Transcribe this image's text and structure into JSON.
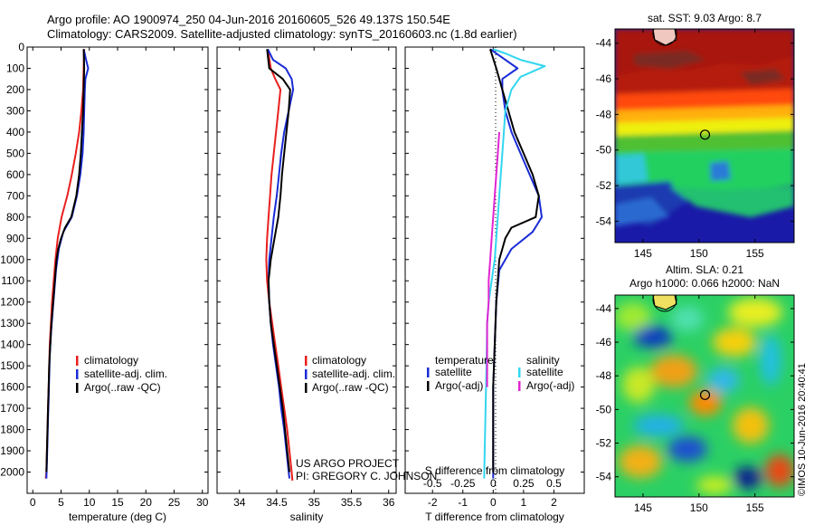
{
  "header": {
    "line1": "Argo profile: AO 1900974_250 04-Jun-2016 20160605_526 49.137S 150.54E",
    "line2": "Climatology: CARS2009. Satellite-adjusted climatology: synTS_20160603.nc (1.8d earlier)"
  },
  "project": {
    "line1": "US ARGO PROJECT",
    "line2": "PI: GREGORY C. JOHNSON"
  },
  "credit": "©IMOS 10-Jun-2016 20:40:41",
  "colors": {
    "climatology": "#e8201e",
    "satellite": "#1a2cd6",
    "argo": "#000000",
    "salinity_satellite": "#33d6f0",
    "salinity_argo": "#e026d2"
  },
  "chart_data": [
    {
      "type": "line",
      "id": "temperature",
      "xlabel": "temperature (deg C)",
      "ylim": [
        2100,
        0
      ],
      "xlim": [
        -1,
        31
      ],
      "xticks": [
        0,
        5,
        10,
        15,
        20,
        25,
        30
      ],
      "yticks": [
        0,
        100,
        200,
        300,
        400,
        500,
        600,
        700,
        800,
        900,
        1000,
        1100,
        1200,
        1300,
        1400,
        1500,
        1600,
        1700,
        1800,
        1900,
        2000
      ],
      "legend": [
        "climatology",
        "satellite-adj. clim.",
        "Argo(..raw -QC)"
      ],
      "series": [
        {
          "name": "climatology",
          "color": "#e8201e",
          "points": [
            [
              9.1,
              10
            ],
            [
              9.0,
              100
            ],
            [
              8.9,
              200
            ],
            [
              8.6,
              300
            ],
            [
              8.2,
              400
            ],
            [
              7.6,
              500
            ],
            [
              6.9,
              600
            ],
            [
              6.1,
              700
            ],
            [
              5.1,
              800
            ],
            [
              4.4,
              900
            ],
            [
              4.0,
              1000
            ],
            [
              3.7,
              1100
            ],
            [
              3.4,
              1200
            ],
            [
              3.2,
              1300
            ],
            [
              3.0,
              1400
            ],
            [
              2.9,
              1500
            ],
            [
              2.8,
              1600
            ],
            [
              2.7,
              1700
            ],
            [
              2.6,
              1800
            ],
            [
              2.5,
              1900
            ],
            [
              2.4,
              2000
            ],
            [
              2.3,
              2030
            ]
          ]
        },
        {
          "name": "satellite-adj. clim.",
          "color": "#1a2cd6",
          "points": [
            [
              9.0,
              10
            ],
            [
              9.6,
              80
            ],
            [
              9.8,
              100
            ],
            [
              9.3,
              150
            ],
            [
              9.2,
              200
            ],
            [
              9.1,
              300
            ],
            [
              9.0,
              400
            ],
            [
              8.8,
              500
            ],
            [
              8.4,
              600
            ],
            [
              7.8,
              700
            ],
            [
              6.9,
              800
            ],
            [
              5.4,
              870
            ],
            [
              4.6,
              950
            ],
            [
              4.1,
              1050
            ],
            [
              3.8,
              1150
            ],
            [
              3.5,
              1250
            ],
            [
              3.2,
              1350
            ],
            [
              3.0,
              1450
            ],
            [
              2.9,
              1550
            ],
            [
              2.8,
              1650
            ],
            [
              2.7,
              1750
            ],
            [
              2.6,
              1850
            ],
            [
              2.5,
              1950
            ],
            [
              2.4,
              2030
            ]
          ]
        },
        {
          "name": "Argo(..raw -QC)",
          "color": "#000000",
          "points": [
            [
              9.0,
              10
            ],
            [
              9.1,
              100
            ],
            [
              9.0,
              200
            ],
            [
              8.9,
              300
            ],
            [
              8.7,
              400
            ],
            [
              8.5,
              500
            ],
            [
              8.2,
              600
            ],
            [
              7.7,
              700
            ],
            [
              6.8,
              800
            ],
            [
              5.7,
              850
            ],
            [
              5.0,
              900
            ],
            [
              4.5,
              950
            ],
            [
              4.2,
              1000
            ],
            [
              3.9,
              1100
            ],
            [
              3.6,
              1200
            ],
            [
              3.3,
              1300
            ],
            [
              3.1,
              1400
            ],
            [
              2.9,
              1500
            ],
            [
              2.8,
              1600
            ],
            [
              2.7,
              1700
            ],
            [
              2.6,
              1800
            ],
            [
              2.5,
              1900
            ],
            [
              2.4,
              2000
            ]
          ]
        }
      ]
    },
    {
      "type": "line",
      "id": "salinity",
      "xlabel": "salinity",
      "ylim": [
        2100,
        0
      ],
      "xlim": [
        33.7,
        36.1
      ],
      "xticks": [
        34,
        34.5,
        35,
        35.5,
        36
      ],
      "legend": [
        "climatology",
        "satellite-adj. clim.",
        "Argo(..raw -QC)"
      ],
      "series": [
        {
          "name": "climatology",
          "color": "#e8201e",
          "points": [
            [
              34.38,
              10
            ],
            [
              34.42,
              100
            ],
            [
              34.48,
              150
            ],
            [
              34.55,
              200
            ],
            [
              34.52,
              300
            ],
            [
              34.49,
              400
            ],
            [
              34.46,
              500
            ],
            [
              34.43,
              600
            ],
            [
              34.41,
              700
            ],
            [
              34.39,
              800
            ],
            [
              34.37,
              900
            ],
            [
              34.36,
              1000
            ],
            [
              34.37,
              1100
            ],
            [
              34.4,
              1200
            ],
            [
              34.44,
              1300
            ],
            [
              34.48,
              1400
            ],
            [
              34.52,
              1500
            ],
            [
              34.56,
              1600
            ],
            [
              34.6,
              1700
            ],
            [
              34.64,
              1800
            ],
            [
              34.67,
              1900
            ],
            [
              34.7,
              2000
            ],
            [
              34.71,
              2040
            ]
          ]
        },
        {
          "name": "satellite-adj. clim.",
          "color": "#1a2cd6",
          "points": [
            [
              34.38,
              10
            ],
            [
              34.45,
              60
            ],
            [
              34.62,
              100
            ],
            [
              34.7,
              150
            ],
            [
              34.72,
              200
            ],
            [
              34.66,
              300
            ],
            [
              34.6,
              400
            ],
            [
              34.56,
              500
            ],
            [
              34.53,
              600
            ],
            [
              34.5,
              700
            ],
            [
              34.46,
              800
            ],
            [
              34.43,
              900
            ],
            [
              34.4,
              1000
            ],
            [
              34.39,
              1100
            ],
            [
              34.4,
              1200
            ],
            [
              34.42,
              1300
            ],
            [
              34.45,
              1400
            ],
            [
              34.49,
              1500
            ],
            [
              34.53,
              1600
            ],
            [
              34.56,
              1700
            ],
            [
              34.6,
              1800
            ],
            [
              34.63,
              1900
            ],
            [
              34.66,
              2000
            ],
            [
              34.67,
              2030
            ]
          ]
        },
        {
          "name": "Argo(..raw -QC)",
          "color": "#000000",
          "points": [
            [
              34.37,
              10
            ],
            [
              34.4,
              100
            ],
            [
              34.58,
              150
            ],
            [
              34.68,
              200
            ],
            [
              34.66,
              300
            ],
            [
              34.63,
              400
            ],
            [
              34.6,
              500
            ],
            [
              34.57,
              600
            ],
            [
              34.55,
              700
            ],
            [
              34.52,
              800
            ],
            [
              34.47,
              900
            ],
            [
              34.42,
              1000
            ],
            [
              34.39,
              1100
            ],
            [
              34.4,
              1200
            ],
            [
              34.42,
              1300
            ],
            [
              34.46,
              1400
            ],
            [
              34.5,
              1500
            ],
            [
              34.54,
              1600
            ],
            [
              34.58,
              1700
            ],
            [
              34.61,
              1800
            ],
            [
              34.64,
              1900
            ],
            [
              34.67,
              2000
            ]
          ]
        }
      ]
    },
    {
      "type": "line",
      "id": "difference",
      "xlabel": "T difference from climatology",
      "xlabel2": "S difference from climatology",
      "ylim": [
        2100,
        0
      ],
      "xlim": [
        -2.9,
        3.0
      ],
      "xticks": [
        -2,
        -1,
        0,
        1,
        2
      ],
      "sticks_pos": [
        -2,
        -1,
        0,
        1,
        2
      ],
      "sticks": [
        "-0.5",
        "-0.25",
        "0",
        "0.25",
        "0.5"
      ],
      "legend_temperature_title": "temperature",
      "legend_salinity_title": "salinity",
      "legend_temperature": [
        "satellite",
        "Argo(-adj)"
      ],
      "legend_salinity": [
        "satellite",
        "Argo(-adj)"
      ],
      "series": [
        {
          "name": "T satellite",
          "color": "#1a2cd6",
          "points": [
            [
              -0.1,
              10
            ],
            [
              0.8,
              100
            ],
            [
              0.3,
              150
            ],
            [
              0.3,
              200
            ],
            [
              0.4,
              300
            ],
            [
              0.6,
              400
            ],
            [
              0.9,
              500
            ],
            [
              1.2,
              600
            ],
            [
              1.5,
              700
            ],
            [
              1.6,
              800
            ],
            [
              1.3,
              870
            ],
            [
              0.6,
              950
            ],
            [
              0.2,
              1050
            ],
            [
              0.1,
              1200
            ],
            [
              0.05,
              1400
            ],
            [
              0.0,
              1600
            ],
            [
              0.0,
              2030
            ]
          ]
        },
        {
          "name": "T Argo(-adj)",
          "color": "#000000",
          "points": [
            [
              -0.1,
              10
            ],
            [
              0.1,
              100
            ],
            [
              0.3,
              200
            ],
            [
              0.5,
              300
            ],
            [
              0.7,
              400
            ],
            [
              1.0,
              500
            ],
            [
              1.3,
              600
            ],
            [
              1.5,
              700
            ],
            [
              1.4,
              800
            ],
            [
              0.6,
              850
            ],
            [
              0.4,
              900
            ],
            [
              0.3,
              950
            ],
            [
              0.2,
              1000
            ],
            [
              0.15,
              1100
            ],
            [
              0.1,
              1200
            ],
            [
              0.05,
              1400
            ],
            [
              0.0,
              1600
            ],
            [
              0.0,
              2000
            ]
          ]
        },
        {
          "name": "S satellite",
          "color": "#33d6f0",
          "points": [
            [
              0.0,
              10
            ],
            [
              0.4,
              30
            ],
            [
              0.9,
              60
            ],
            [
              1.7,
              90
            ],
            [
              0.9,
              140
            ],
            [
              0.6,
              200
            ],
            [
              0.4,
              300
            ],
            [
              0.35,
              400
            ],
            [
              0.3,
              500
            ],
            [
              0.25,
              600
            ],
            [
              0.2,
              700
            ],
            [
              0.15,
              800
            ],
            [
              0.1,
              900
            ],
            [
              0.05,
              1000
            ],
            [
              -0.05,
              1100
            ],
            [
              -0.15,
              1200
            ],
            [
              -0.2,
              1300
            ],
            [
              -0.22,
              1500
            ],
            [
              -0.25,
              1700
            ],
            [
              -0.28,
              1900
            ],
            [
              -0.3,
              2030
            ]
          ]
        },
        {
          "name": "S Argo(-adj)",
          "color": "#e026d2",
          "points": [
            [
              0.2,
              400
            ],
            [
              0.15,
              500
            ],
            [
              0.1,
              600
            ],
            [
              0.05,
              700
            ],
            [
              0.0,
              800
            ],
            [
              -0.05,
              900
            ],
            [
              -0.1,
              1000
            ],
            [
              -0.15,
              1100
            ],
            [
              -0.15,
              1200
            ],
            [
              -0.2,
              1300
            ],
            [
              -0.2,
              1400
            ],
            [
              -0.2,
              1500
            ],
            [
              -0.2,
              1600
            ]
          ]
        }
      ]
    },
    {
      "type": "heatmap",
      "id": "sst_map",
      "title": "sat. SST: 9.03 Argo: 8.7",
      "xticks": [
        145,
        150,
        155
      ],
      "yticks": [
        -44,
        -46,
        -48,
        -50,
        -52,
        -54
      ],
      "xlim": [
        142.5,
        158.5
      ],
      "ylim": [
        -55.2,
        -43.2
      ],
      "argo_position": [
        150.54,
        -49.137
      ]
    },
    {
      "type": "heatmap",
      "id": "sla_map",
      "title": "Altim. SLA: 0.21",
      "subtitle": "Argo h1000: 0.066 h2000: NaN",
      "xticks": [
        145,
        150,
        155
      ],
      "yticks": [
        -44,
        -46,
        -48,
        -50,
        -52,
        -54
      ],
      "xlim": [
        142.5,
        158.5
      ],
      "ylim": [
        -55.2,
        -43.2
      ],
      "argo_position": [
        150.54,
        -49.137
      ]
    }
  ]
}
